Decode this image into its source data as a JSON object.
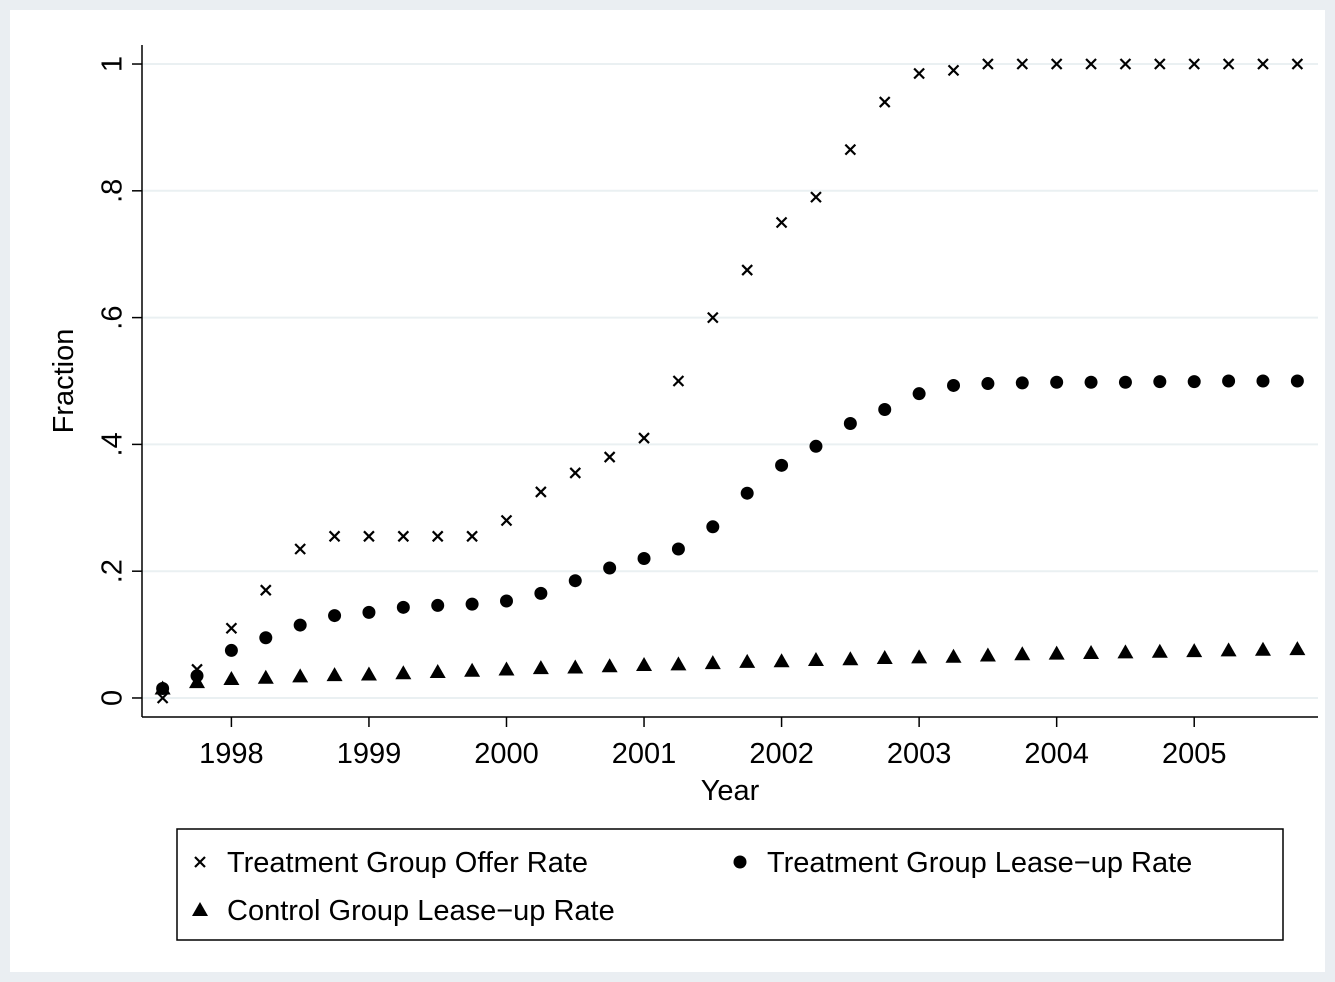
{
  "chart_data": {
    "type": "scatter",
    "x_label": "Year",
    "y_label": "Fraction",
    "x": [
      1997.5,
      1997.75,
      1998,
      1998.25,
      1998.5,
      1998.75,
      1999,
      1999.25,
      1999.5,
      1999.75,
      2000,
      2000.25,
      2000.5,
      2000.75,
      2001,
      2001.25,
      2001.5,
      2001.75,
      2002,
      2002.25,
      2002.5,
      2002.75,
      2003,
      2003.25,
      2003.5,
      2003.75,
      2004,
      2004.25,
      2004.5,
      2004.75,
      2005,
      2005.25,
      2005.5,
      2005.75
    ],
    "series": [
      {
        "name": "Treatment Group Offer Rate",
        "color": "#000000",
        "marker": "x",
        "values": [
          0.0,
          0.045,
          0.11,
          0.17,
          0.235,
          0.255,
          0.255,
          0.255,
          0.255,
          0.255,
          0.28,
          0.325,
          0.355,
          0.38,
          0.41,
          0.5,
          0.6,
          0.675,
          0.75,
          0.79,
          0.865,
          0.94,
          0.985,
          0.99,
          1,
          1,
          1,
          1,
          1,
          1,
          1,
          1,
          1,
          1
        ]
      },
      {
        "name": "Treatment Group Lease−up Rate",
        "color": "#000000",
        "marker": "circle",
        "values": [
          0.015,
          0.035,
          0.075,
          0.095,
          0.115,
          0.13,
          0.135,
          0.143,
          0.146,
          0.148,
          0.153,
          0.165,
          0.185,
          0.205,
          0.22,
          0.235,
          0.27,
          0.323,
          0.367,
          0.397,
          0.433,
          0.455,
          0.48,
          0.493,
          0.496,
          0.497,
          0.498,
          0.498,
          0.498,
          0.499,
          0.499,
          0.5,
          0.5,
          0.5
        ]
      },
      {
        "name": "Control Group Lease−up Rate",
        "color": "#000000",
        "marker": "triangle",
        "values": [
          0.015,
          0.025,
          0.03,
          0.032,
          0.034,
          0.036,
          0.037,
          0.039,
          0.041,
          0.043,
          0.045,
          0.047,
          0.048,
          0.05,
          0.052,
          0.053,
          0.055,
          0.057,
          0.058,
          0.06,
          0.061,
          0.063,
          0.064,
          0.065,
          0.067,
          0.069,
          0.07,
          0.071,
          0.072,
          0.073,
          0.074,
          0.075,
          0.076,
          0.077
        ]
      }
    ],
    "xlim": [
      1997.35,
      2005.9
    ],
    "xticks": [
      1998,
      1999,
      2000,
      2001,
      2002,
      2003,
      2004,
      2005
    ],
    "ylim": [
      -0.03,
      1.03
    ],
    "yticks": [
      0,
      {
        "value": 0.2,
        "label": ".2"
      },
      {
        "value": 0.4,
        "label": ".4"
      },
      {
        "value": 0.6,
        "label": ".6"
      },
      {
        "value": 0.8,
        "label": ".8"
      },
      1
    ],
    "grid": true,
    "legend": "bottom"
  }
}
